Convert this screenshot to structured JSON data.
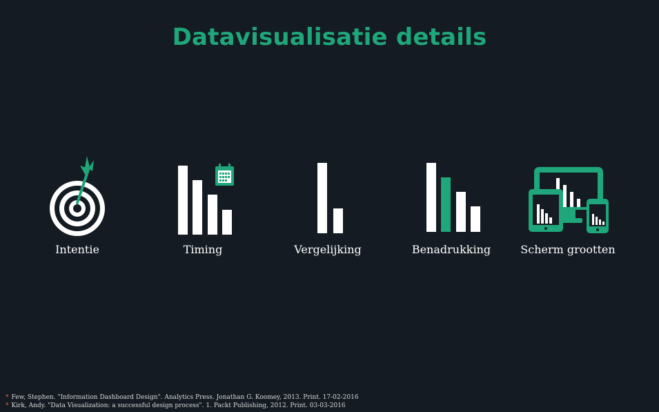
{
  "title": "Datavisualisatie details",
  "items": [
    {
      "label": "Intentie",
      "icon": "target-icon"
    },
    {
      "label": "Timing",
      "icon": "bar-chart-calendar-icon"
    },
    {
      "label": "Vergelijking",
      "icon": "bar-compare-icon"
    },
    {
      "label": "Benadrukking",
      "icon": "bar-highlight-icon"
    },
    {
      "label": "Scherm grootten",
      "icon": "devices-icon"
    }
  ],
  "references": [
    "Few, Stephen. \"Information Dashboard Design\". Analytics Press. Jonathan G. Koomey, 2013. Print. 17-02-2016",
    "Kirk, Andy. \"Data Visualization: a successful design process\". 1. Packt Publishing, 2012. Print. 03-03-2016"
  ],
  "bullet": "*",
  "colors": {
    "accent": "#1fa67a",
    "background": "#141b22",
    "bullet": "#e06a2c"
  }
}
